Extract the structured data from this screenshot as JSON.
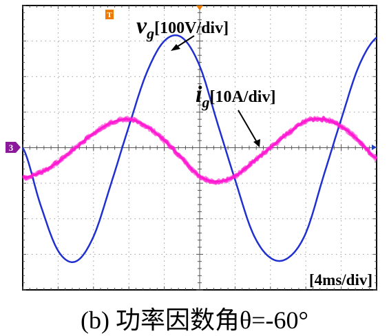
{
  "chart_data": {
    "type": "line",
    "title": "",
    "xlabel": "",
    "ylabel": "",
    "x_divisions": 10,
    "y_divisions": 8,
    "x_unit_label": "[4ms/div]",
    "grid": true,
    "channel_marker": "3",
    "trigger_marker": "T",
    "series": [
      {
        "name": "v",
        "subscript": "g",
        "scale_label": "[100V/div]",
        "color": "#1f2fd0",
        "x_div": [
          0.0,
          0.5,
          1.0,
          1.5,
          2.0,
          2.5,
          3.0,
          3.5,
          4.0,
          4.5,
          5.0,
          5.5,
          6.0,
          6.5,
          7.0,
          7.5,
          8.0,
          8.5,
          9.0,
          9.5,
          10.0
        ],
        "y_div": [
          0.0,
          -1.6,
          -2.9,
          -3.2,
          -2.5,
          -1.0,
          0.6,
          2.1,
          3.0,
          3.1,
          2.3,
          0.7,
          -0.9,
          -2.4,
          -3.1,
          -3.1,
          -2.4,
          -0.8,
          0.8,
          2.3,
          3.1
        ],
        "y_div_end": [
          3.1,
          2.2,
          0.3
        ]
      },
      {
        "name": "i",
        "subscript": "g",
        "scale_label": "[10A/div]",
        "color": "#ff1ad2",
        "x_div": [
          0.0,
          0.5,
          1.0,
          1.5,
          2.0,
          2.5,
          3.0,
          3.5,
          4.0,
          4.5,
          5.0,
          5.5,
          6.0,
          6.5,
          7.0,
          7.5,
          8.0,
          8.5,
          9.0,
          9.5,
          10.0
        ],
        "y_div": [
          -0.85,
          -0.7,
          -0.4,
          0.0,
          0.4,
          0.7,
          0.8,
          0.6,
          0.2,
          -0.3,
          -0.8,
          -0.95,
          -0.8,
          -0.4,
          0.0,
          0.4,
          0.75,
          0.8,
          0.6,
          0.2,
          -0.3
        ]
      }
    ]
  },
  "caption": "(b)  功率因数角θ=-60°"
}
